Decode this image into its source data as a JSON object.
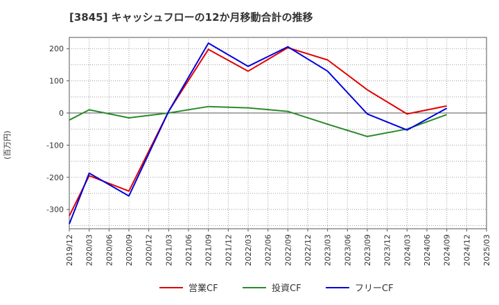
{
  "chart_data": {
    "type": "line",
    "title": "[3845]  キャッシュフローの12か月移動合計の推移",
    "ylabel": "(百万円)",
    "xlabel": "",
    "ylim": [
      -360,
      235
    ],
    "yticks": [
      -300,
      -200,
      -100,
      0,
      100,
      200
    ],
    "x": [
      "2019/12",
      "2020/03",
      "2020/06",
      "2020/09",
      "2020/12",
      "2021/03",
      "2021/06",
      "2021/09",
      "2021/12",
      "2022/03",
      "2022/06",
      "2022/09",
      "2022/12",
      "2023/03",
      "2023/06",
      "2023/09",
      "2023/12",
      "2024/03",
      "2024/06",
      "2024/09",
      "2024/12",
      "2025/03"
    ],
    "grid": true,
    "legend_position": "bottom",
    "series": [
      {
        "name": "営業CF",
        "color": "#e00000",
        "values": [
          -320,
          -195,
          null,
          -243,
          null,
          5,
          null,
          198,
          null,
          130,
          null,
          203,
          null,
          165,
          null,
          72,
          null,
          -3,
          null,
          22,
          null,
          null
        ]
      },
      {
        "name": "投資CF",
        "color": "#2a8a2a",
        "values": [
          -22,
          10,
          null,
          -15,
          null,
          0,
          null,
          20,
          null,
          16,
          null,
          5,
          null,
          -35,
          null,
          -73,
          null,
          -50,
          null,
          -5,
          null,
          null
        ]
      },
      {
        "name": "フリーCF",
        "color": "#0000dd",
        "values": [
          -345,
          -187,
          null,
          -258,
          null,
          5,
          null,
          217,
          null,
          145,
          null,
          206,
          null,
          130,
          null,
          -3,
          null,
          -53,
          null,
          15,
          null,
          null
        ]
      }
    ]
  }
}
